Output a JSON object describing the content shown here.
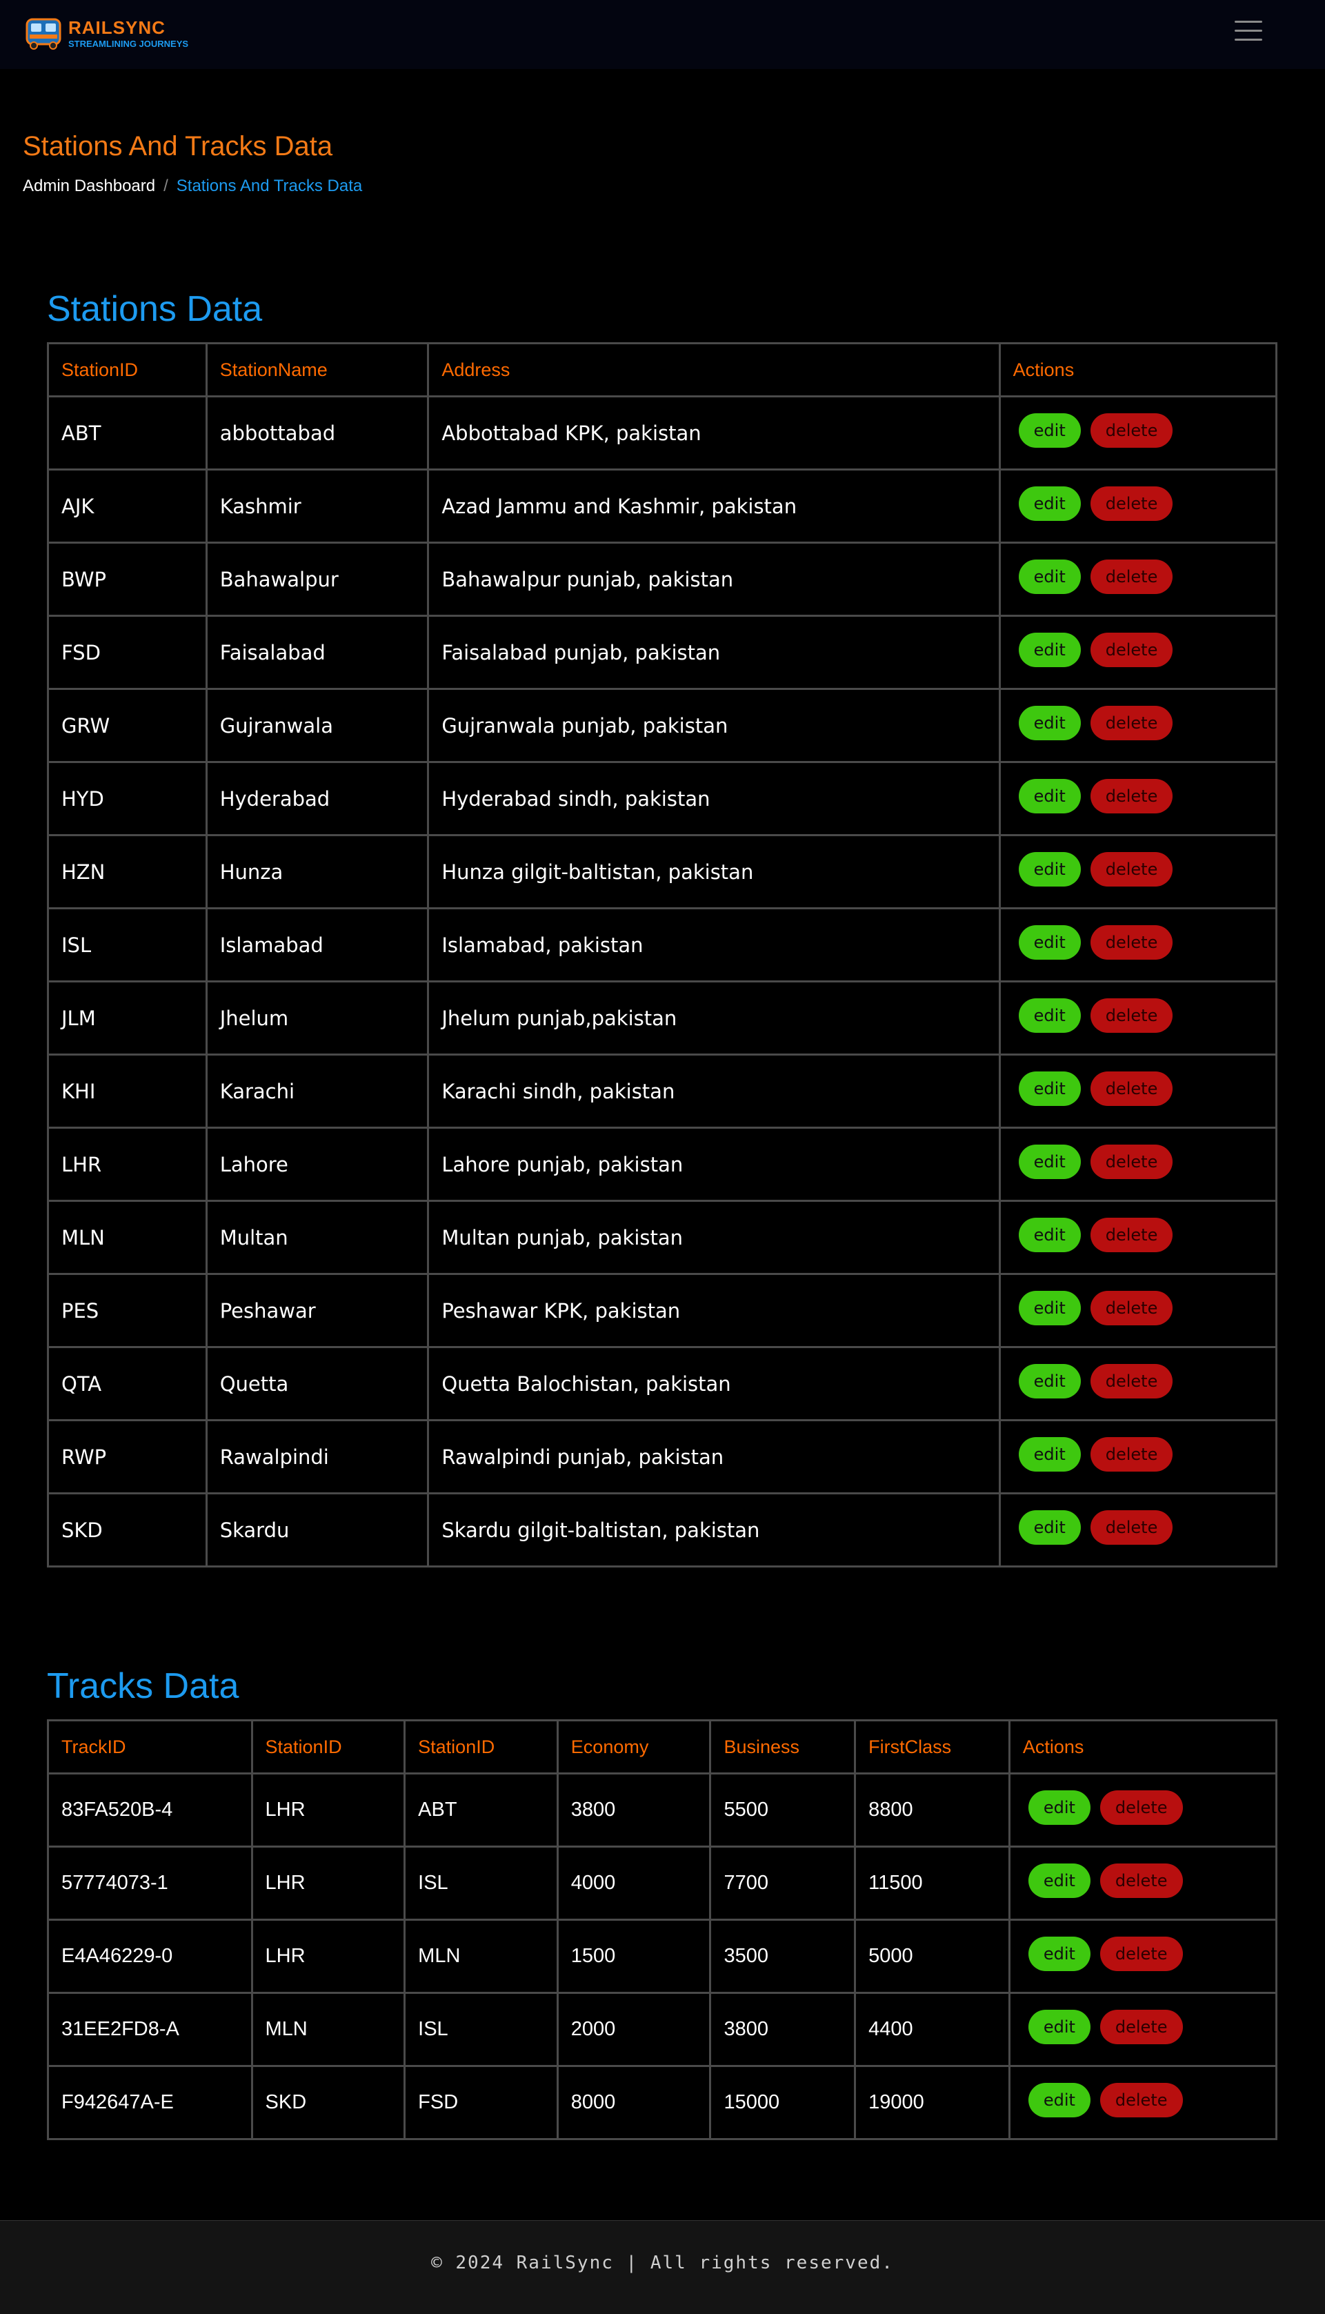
{
  "navbar": {
    "logo_title": "RAILSYNC",
    "logo_tagline": "STREAMLINING JOURNEYS",
    "menu_icon": "hamburger-menu-icon"
  },
  "header": {
    "title": "Stations And Tracks Data",
    "breadcrumb": {
      "home": "Admin Dashboard",
      "separator": "/",
      "current": "Stations And Tracks Data"
    }
  },
  "stations": {
    "title": "Stations Data",
    "columns": [
      "StationID",
      "StationName",
      "Address",
      "Actions"
    ],
    "rows": [
      {
        "id": "ABT",
        "name": "abbottabad",
        "address": "Abbottabad KPK, pakistan"
      },
      {
        "id": "AJK",
        "name": "Kashmir",
        "address": "Azad Jammu and Kashmir, pakistan"
      },
      {
        "id": "BWP",
        "name": "Bahawalpur",
        "address": "Bahawalpur punjab, pakistan"
      },
      {
        "id": "FSD",
        "name": "Faisalabad",
        "address": "Faisalabad punjab, pakistan"
      },
      {
        "id": "GRW",
        "name": "Gujranwala",
        "address": "Gujranwala punjab, pakistan"
      },
      {
        "id": "HYD",
        "name": "Hyderabad",
        "address": "Hyderabad sindh, pakistan"
      },
      {
        "id": "HZN",
        "name": "Hunza",
        "address": "Hunza gilgit-baltistan, pakistan"
      },
      {
        "id": "ISL",
        "name": "Islamabad",
        "address": "Islamabad, pakistan"
      },
      {
        "id": "JLM",
        "name": "Jhelum",
        "address": "Jhelum punjab,pakistan"
      },
      {
        "id": "KHI",
        "name": "Karachi",
        "address": "Karachi sindh, pakistan"
      },
      {
        "id": "LHR",
        "name": "Lahore",
        "address": "Lahore punjab, pakistan"
      },
      {
        "id": "MLN",
        "name": "Multan",
        "address": "Multan punjab, pakistan"
      },
      {
        "id": "PES",
        "name": "Peshawar",
        "address": "Peshawar KPK, pakistan"
      },
      {
        "id": "QTA",
        "name": "Quetta",
        "address": "Quetta Balochistan, pakistan"
      },
      {
        "id": "RWP",
        "name": "Rawalpindi",
        "address": "Rawalpindi punjab, pakistan"
      },
      {
        "id": "SKD",
        "name": "Skardu",
        "address": "Skardu gilgit-baltistan, pakistan"
      }
    ]
  },
  "tracks": {
    "title": "Tracks Data",
    "columns": [
      "TrackID",
      "StationID",
      "StationID",
      "Economy",
      "Business",
      "FirstClass",
      "Actions"
    ],
    "rows": [
      {
        "track_id": "83FA520B-4",
        "from": "LHR",
        "to": "ABT",
        "economy": "3800",
        "business": "5500",
        "first_class": "8800"
      },
      {
        "track_id": "57774073-1",
        "from": "LHR",
        "to": "ISL",
        "economy": "4000",
        "business": "7700",
        "first_class": "11500"
      },
      {
        "track_id": "E4A46229-0",
        "from": "LHR",
        "to": "MLN",
        "economy": "1500",
        "business": "3500",
        "first_class": "5000"
      },
      {
        "track_id": "31EE2FD8-A",
        "from": "MLN",
        "to": "ISL",
        "economy": "2000",
        "business": "3800",
        "first_class": "4400"
      },
      {
        "track_id": "F942647A-E",
        "from": "SKD",
        "to": "FSD",
        "economy": "8000",
        "business": "15000",
        "first_class": "19000"
      }
    ]
  },
  "actions": {
    "edit_label": "edit",
    "delete_label": "delete"
  },
  "colors": {
    "accent_orange": "#f47a16",
    "accent_blue": "#1d9bf0",
    "edit_green": "#3ec80f",
    "delete_red": "#b80f0f"
  },
  "footer": {
    "text": "© 2024 RailSync | All rights reserved."
  }
}
